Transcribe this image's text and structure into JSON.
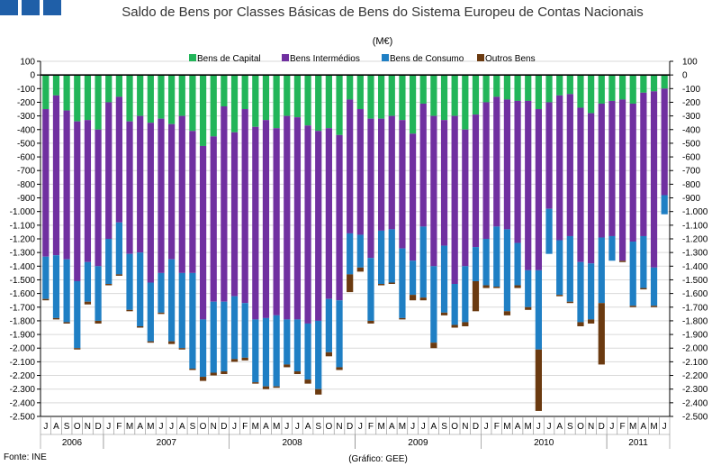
{
  "header": {
    "title": "Saldo de Bens por Classes Básicas de Bens do Sistema Europeu de Contas Nacionais",
    "unit": "(M€)"
  },
  "footer": {
    "source": "Fonte: INE",
    "credit": "(Gráfico: GEE)"
  },
  "colors": {
    "logo": "#1f5fa8",
    "Bens de Capital": "#22b559",
    "Bens Intermédios": "#7030a0",
    "Bens de Consumo": "#1f7fc4",
    "Outros Bens": "#6b3a10"
  },
  "chart_data": {
    "type": "bar",
    "stacked": true,
    "title": "Saldo de Bens por Classes Básicas de Bens do Sistema Europeu de Contas Nacionais",
    "unit": "(M€)",
    "ylim": [
      -2500,
      100
    ],
    "y_ticks": [
      100,
      0,
      -100,
      -200,
      -300,
      -400,
      -500,
      -600,
      -700,
      -800,
      -900,
      -1000,
      -1100,
      -1200,
      -1300,
      -1400,
      -1500,
      -1600,
      -1700,
      -1800,
      -1900,
      -2000,
      -2100,
      -2200,
      -2300,
      -2400,
      -2500
    ],
    "y_tick_labels": [
      "100",
      "0",
      "-100",
      "-200",
      "-300",
      "-400",
      "-500",
      "-600",
      "-700",
      "-800",
      "-900",
      "-1.000",
      "-1.100",
      "-1.200",
      "-1.300",
      "-1.400",
      "-1.500",
      "-1.600",
      "-1.700",
      "-1.800",
      "-1.900",
      "-2.000",
      "-2.100",
      "-2.200",
      "-2.300",
      "-2.400",
      "-2.500"
    ],
    "grid": true,
    "legend_position": "top",
    "categories": [
      "J",
      "A",
      "S",
      "O",
      "N",
      "D",
      "J",
      "F",
      "M",
      "A",
      "M",
      "J",
      "J",
      "A",
      "S",
      "O",
      "N",
      "D",
      "J",
      "F",
      "M",
      "A",
      "M",
      "J",
      "J",
      "A",
      "S",
      "O",
      "N",
      "D",
      "J",
      "F",
      "M",
      "A",
      "M",
      "J",
      "J",
      "A",
      "S",
      "O",
      "N",
      "D",
      "J",
      "F",
      "M",
      "A",
      "M",
      "J",
      "J",
      "A",
      "S",
      "O",
      "N",
      "D",
      "J",
      "F",
      "M",
      "A",
      "M",
      "J"
    ],
    "years": [
      {
        "label": "2006",
        "start": 0,
        "count": 6
      },
      {
        "label": "2007",
        "start": 6,
        "count": 12
      },
      {
        "label": "2008",
        "start": 18,
        "count": 12
      },
      {
        "label": "2009",
        "start": 30,
        "count": 12
      },
      {
        "label": "2010",
        "start": 42,
        "count": 12
      },
      {
        "label": "2011",
        "start": 54,
        "count": 6
      }
    ],
    "series": [
      {
        "name": "Bens de Capital",
        "values": [
          -250,
          -150,
          -260,
          -340,
          -330,
          -400,
          -200,
          -160,
          -340,
          -300,
          -350,
          -320,
          -360,
          -300,
          -410,
          -520,
          -450,
          -230,
          -420,
          -250,
          -380,
          -330,
          -390,
          -300,
          -310,
          -370,
          -410,
          -390,
          -440,
          -180,
          -250,
          -320,
          -320,
          -300,
          -330,
          -430,
          -210,
          -300,
          -330,
          -300,
          -400,
          -290,
          -200,
          -160,
          -180,
          -190,
          -190,
          -250,
          -200,
          -150,
          -140,
          -240,
          -280,
          -210,
          -190,
          -180,
          -210,
          -130,
          -120,
          -100
        ]
      },
      {
        "name": "Bens Intermédios",
        "values": [
          -1080,
          -1170,
          -1090,
          -1170,
          -1040,
          -1000,
          -1000,
          -920,
          -970,
          -1000,
          -1170,
          -1130,
          -990,
          -1150,
          -1040,
          -1270,
          -1210,
          -1430,
          -1200,
          -1420,
          -1410,
          -1450,
          -1370,
          -1490,
          -1480,
          -1450,
          -1390,
          -1250,
          -1210,
          -980,
          -920,
          -1020,
          -820,
          -830,
          -940,
          -930,
          -900,
          -1100,
          -920,
          -1230,
          -1000,
          -970,
          -1000,
          -950,
          -950,
          -1040,
          -1240,
          -1180,
          -780,
          -1060,
          -1040,
          -1130,
          -1100,
          -980,
          -990,
          -1180,
          -1010,
          -1050,
          -1290,
          -780
        ]
      },
      {
        "name": "Bens de Consumo",
        "values": [
          -310,
          -460,
          -460,
          -490,
          -290,
          -400,
          -330,
          -380,
          -410,
          -540,
          -430,
          -290,
          -600,
          -550,
          -700,
          -420,
          -520,
          -510,
          -460,
          -400,
          -460,
          -500,
          -520,
          -330,
          -380,
          -410,
          -500,
          -390,
          -490,
          -300,
          -240,
          -460,
          -390,
          -390,
          -510,
          -250,
          -520,
          -560,
          -490,
          -300,
          -410,
          -250,
          -340,
          -440,
          -600,
          -310,
          -270,
          -580,
          -330,
          -400,
          -480,
          -440,
          -410,
          -480,
          -180,
          0,
          -470,
          -380,
          -280,
          -140
        ]
      },
      {
        "name": "Outros Bens",
        "values": [
          -10,
          -10,
          -10,
          -10,
          -20,
          -20,
          -10,
          -10,
          -10,
          -10,
          -10,
          -10,
          -20,
          -10,
          -10,
          -30,
          -20,
          -20,
          -20,
          -20,
          -10,
          -20,
          -10,
          -20,
          -20,
          -30,
          -40,
          -30,
          -20,
          -130,
          -30,
          -20,
          -10,
          -10,
          -10,
          -40,
          -20,
          -40,
          -20,
          -20,
          -30,
          -220,
          -20,
          -10,
          -30,
          -20,
          -20,
          -450,
          0,
          -10,
          -10,
          -30,
          -30,
          -450,
          0,
          -10,
          -10,
          -10,
          -10,
          0
        ]
      }
    ]
  }
}
